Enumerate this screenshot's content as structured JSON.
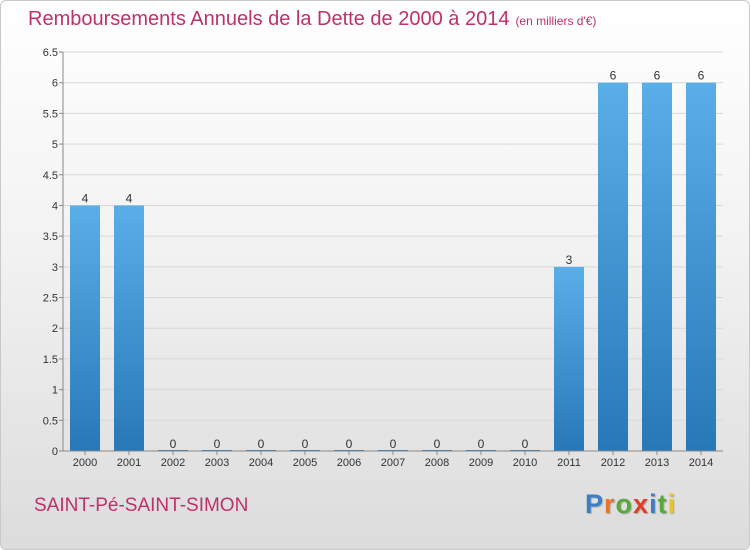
{
  "title": "Remboursements Annuels de la Dette de 2000 à 2014",
  "subtitle": "(en milliers d'€)",
  "place_name": "SAINT-Pé-SAINT-SIMON",
  "brand": {
    "letters": [
      "P",
      "r",
      "o",
      "x",
      "i",
      "t",
      "i"
    ],
    "colors": [
      "#3a7dc8",
      "#e8742a",
      "#5aa83a",
      "#e03d2a",
      "#3a7dc8",
      "#5aa83a",
      "#e8c42a"
    ]
  },
  "colors": {
    "bar_top": "#5aaee8",
    "bar_bottom": "#2878b8",
    "grid": "#d8d8d8",
    "title": "#c0306a"
  },
  "chart_data": {
    "type": "bar",
    "categories": [
      "2000",
      "2001",
      "2002",
      "2003",
      "2004",
      "2005",
      "2006",
      "2007",
      "2008",
      "2009",
      "2010",
      "2011",
      "2012",
      "2013",
      "2014"
    ],
    "values": [
      4,
      4,
      0,
      0,
      0,
      0,
      0,
      0,
      0,
      0,
      0,
      3,
      6,
      6,
      6
    ],
    "ylim": [
      0,
      6.5
    ],
    "yticks": [
      "0",
      "0.5",
      "1",
      "1.5",
      "2",
      "2.5",
      "3",
      "3.5",
      "4",
      "4.5",
      "5",
      "5.5",
      "6",
      "6.5"
    ],
    "grid": true
  }
}
